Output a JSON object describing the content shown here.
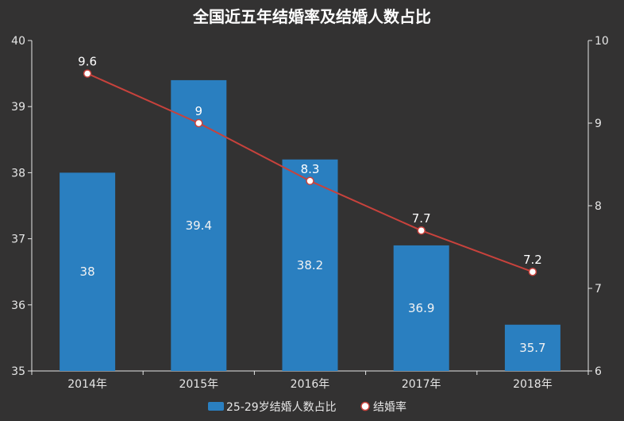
{
  "chart_data": {
    "type": "bar+line",
    "title": "全国近五年结婚率及结婚人数占比",
    "categories": [
      "2014年",
      "2015年",
      "2016年",
      "2017年",
      "2018年"
    ],
    "series": [
      {
        "name": "25-29岁结婚人数占比",
        "type": "bar",
        "axis": "left",
        "color": "#2a7fc0",
        "values": [
          38,
          39.4,
          38.2,
          36.9,
          35.7
        ]
      },
      {
        "name": "结婚率",
        "type": "line",
        "axis": "right",
        "color": "#c8423c",
        "values": [
          9.6,
          9,
          8.3,
          7.7,
          7.2
        ]
      }
    ],
    "y_left": {
      "min": 35,
      "max": 40,
      "ticks": [
        35,
        36,
        37,
        38,
        39,
        40
      ]
    },
    "y_right": {
      "min": 6,
      "max": 10,
      "ticks": [
        6,
        7,
        8,
        9,
        10
      ]
    },
    "legend_position": "bottom-center",
    "grid": false
  }
}
